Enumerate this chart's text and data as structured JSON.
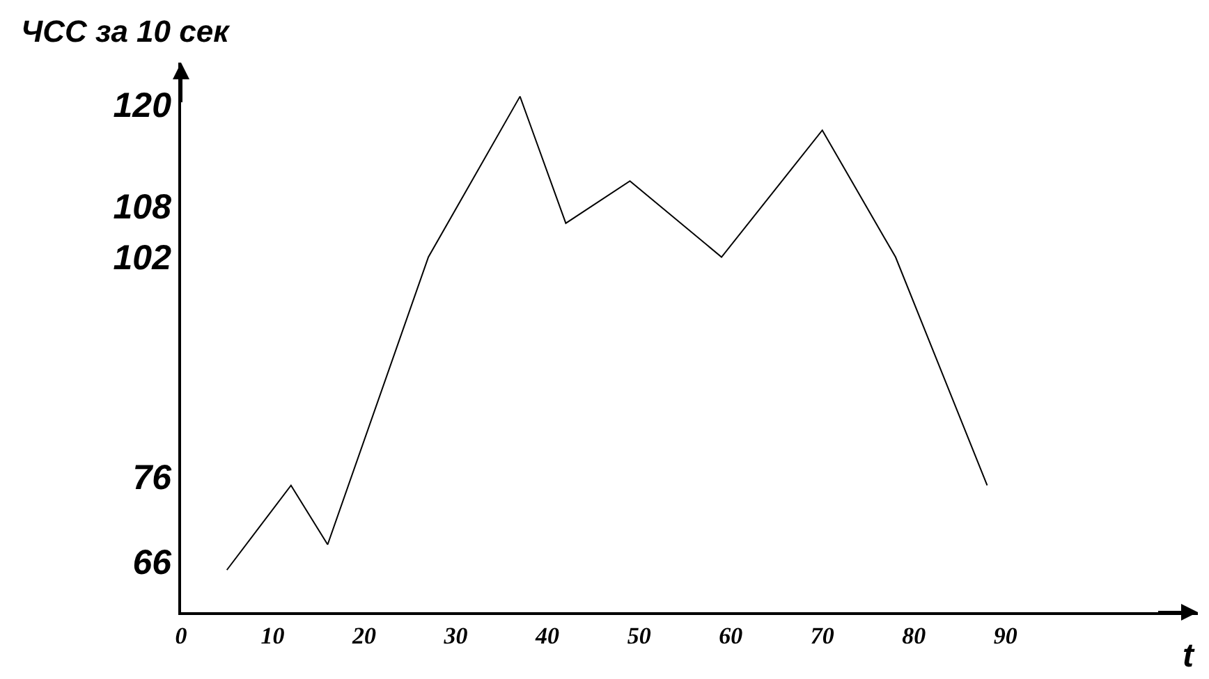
{
  "chart_data": {
    "type": "line",
    "ylabel": "ЧСС за 10 сек",
    "xlabel": "t",
    "x": [
      5,
      12,
      16,
      27,
      37,
      42,
      49,
      59,
      70,
      78,
      88
    ],
    "series": [
      {
        "color": "#000000",
        "values": [
          65,
          75,
          68,
          102,
          121,
          106,
          111,
          102,
          117,
          102,
          75
        ]
      }
    ],
    "xlim": [
      0,
      111
    ],
    "xticks": [
      0,
      10,
      20,
      30,
      40,
      50,
      60,
      70,
      80,
      90
    ],
    "ylim": [
      60,
      125
    ],
    "yticks": [
      66,
      76,
      102,
      108,
      120
    ],
    "grid": false,
    "marker": "none",
    "line_style": "solid"
  }
}
